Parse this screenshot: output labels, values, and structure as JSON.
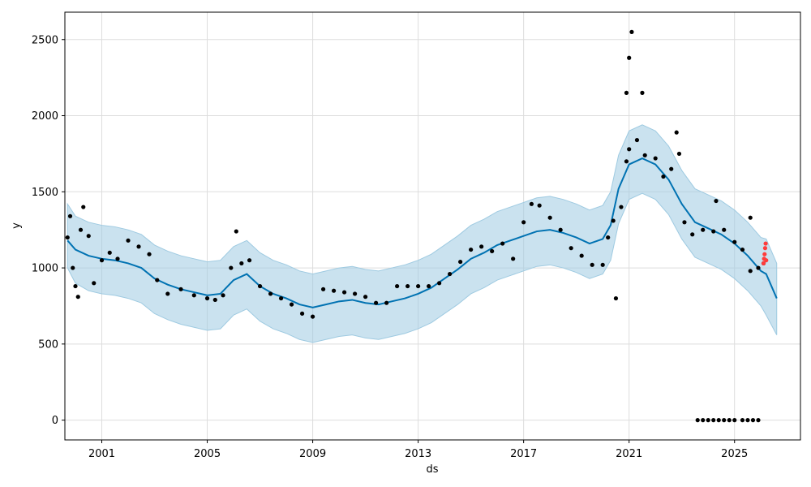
{
  "chart_data": {
    "type": "line",
    "title": "",
    "xlabel": "ds",
    "ylabel": "y",
    "xlim": [
      1999.6,
      2027.5
    ],
    "ylim": [
      -130,
      2680
    ],
    "x_ticks": [
      2001,
      2005,
      2009,
      2013,
      2017,
      2021,
      2025
    ],
    "y_ticks": [
      0,
      500,
      1000,
      1500,
      2000,
      2500
    ],
    "grid": true,
    "legend": "none",
    "colors": {
      "forecast": "#0072B2",
      "interval": "#9ecae1",
      "observed": "#000000",
      "recent": "#ff3b3b"
    },
    "series": [
      {
        "kind": "forecast",
        "x": [
          1999.7,
          2000.0,
          2000.5,
          2001.0,
          2001.5,
          2002.0,
          2002.5,
          2003.0,
          2003.5,
          2004.0,
          2004.5,
          2005.0,
          2005.5,
          2006.0,
          2006.5,
          2007.0,
          2007.5,
          2008.0,
          2008.5,
          2009.0,
          2009.5,
          2010.0,
          2010.5,
          2011.0,
          2011.5,
          2012.0,
          2012.5,
          2013.0,
          2013.5,
          2014.0,
          2014.5,
          2015.0,
          2015.5,
          2016.0,
          2016.5,
          2017.0,
          2017.5,
          2018.0,
          2018.5,
          2019.0,
          2019.5,
          2020.0,
          2020.3,
          2020.6,
          2021.0,
          2021.5,
          2022.0,
          2022.5,
          2023.0,
          2023.5,
          2024.0,
          2024.5,
          2025.0,
          2025.5,
          2026.0,
          2026.2,
          2026.6
        ],
        "yhat": [
          1180,
          1120,
          1080,
          1060,
          1050,
          1030,
          1000,
          930,
          890,
          860,
          840,
          820,
          830,
          920,
          960,
          880,
          830,
          800,
          760,
          740,
          760,
          780,
          790,
          770,
          760,
          780,
          800,
          830,
          870,
          930,
          990,
          1060,
          1100,
          1150,
          1180,
          1210,
          1240,
          1250,
          1230,
          1200,
          1160,
          1190,
          1280,
          1520,
          1680,
          1720,
          1680,
          1580,
          1420,
          1300,
          1260,
          1220,
          1160,
          1080,
          980,
          960,
          800
        ],
        "lower": [
          1000,
          900,
          850,
          830,
          820,
          800,
          770,
          700,
          660,
          630,
          610,
          590,
          600,
          690,
          730,
          650,
          600,
          570,
          530,
          510,
          530,
          550,
          560,
          540,
          530,
          550,
          570,
          600,
          640,
          700,
          760,
          830,
          870,
          920,
          950,
          980,
          1010,
          1020,
          1000,
          970,
          930,
          960,
          1050,
          1290,
          1450,
          1490,
          1450,
          1350,
          1190,
          1070,
          1030,
          990,
          930,
          850,
          750,
          690,
          560
        ],
        "upper": [
          1420,
          1340,
          1300,
          1280,
          1270,
          1250,
          1220,
          1150,
          1110,
          1080,
          1060,
          1040,
          1050,
          1140,
          1180,
          1100,
          1050,
          1020,
          980,
          960,
          980,
          1000,
          1010,
          990,
          980,
          1000,
          1020,
          1050,
          1090,
          1150,
          1210,
          1280,
          1320,
          1370,
          1400,
          1430,
          1460,
          1470,
          1450,
          1420,
          1380,
          1410,
          1500,
          1740,
          1900,
          1940,
          1900,
          1800,
          1640,
          1520,
          1480,
          1440,
          1380,
          1300,
          1200,
          1190,
          1030
        ]
      },
      {
        "kind": "observed",
        "x": [
          1999.7,
          1999.8,
          1999.9,
          2000.0,
          2000.1,
          2000.2,
          2000.3,
          2000.5,
          2000.7,
          2001.0,
          2001.3,
          2001.6,
          2002.0,
          2002.4,
          2002.8,
          2003.1,
          2003.5,
          2004.0,
          2004.5,
          2005.0,
          2005.3,
          2005.6,
          2005.9,
          2006.1,
          2006.3,
          2006.6,
          2007.0,
          2007.4,
          2007.8,
          2008.2,
          2008.6,
          2009.0,
          2009.4,
          2009.8,
          2010.2,
          2010.6,
          2011.0,
          2011.4,
          2011.8,
          2012.2,
          2012.6,
          2013.0,
          2013.4,
          2013.8,
          2014.2,
          2014.6,
          2015.0,
          2015.4,
          2015.8,
          2016.2,
          2016.6,
          2017.0,
          2017.3,
          2017.6,
          2018.0,
          2018.4,
          2018.8,
          2019.2,
          2019.6,
          2020.0,
          2020.2,
          2020.4,
          2020.5,
          2020.7,
          2020.9,
          2021.0,
          2021.3,
          2021.6,
          2022.0,
          2022.3,
          2022.6,
          2022.9,
          2023.1,
          2023.4,
          2023.8,
          2024.2,
          2024.6,
          2025.0,
          2025.3,
          2025.6,
          2025.9,
          2026.1
        ],
        "y": [
          1200,
          1340,
          1000,
          880,
          810,
          1250,
          1400,
          1210,
          900,
          1050,
          1100,
          1060,
          1180,
          1140,
          1090,
          920,
          830,
          860,
          820,
          800,
          790,
          820,
          1000,
          1240,
          1030,
          1050,
          880,
          830,
          800,
          760,
          700,
          680,
          860,
          850,
          840,
          830,
          810,
          770,
          770,
          880,
          880,
          880,
          880,
          900,
          960,
          1040,
          1120,
          1140,
          1110,
          1160,
          1060,
          1300,
          1420,
          1410,
          1330,
          1250,
          1130,
          1080,
          1020,
          1020,
          1200,
          1310,
          800,
          1400,
          1700,
          1780,
          1840,
          1740,
          1720,
          1600,
          1650,
          1750,
          1300,
          1220,
          1250,
          1240,
          1250,
          1170,
          1120,
          980,
          1000,
          1030
        ]
      },
      {
        "kind": "observed-outliers",
        "x": [
          2020.9,
          2021.0,
          2021.1,
          2021.5,
          2022.8,
          2024.3,
          2025.6
        ],
        "y": [
          2150,
          2380,
          2550,
          2150,
          1890,
          1440,
          1330
        ]
      },
      {
        "kind": "observed-zero",
        "x": [
          2023.6,
          2023.8,
          2024.0,
          2024.2,
          2024.4,
          2024.6,
          2024.8,
          2025.0,
          2025.3,
          2025.5,
          2025.7,
          2025.9
        ],
        "y": [
          0,
          0,
          0,
          0,
          0,
          0,
          0,
          0,
          0,
          0,
          0,
          0
        ]
      },
      {
        "kind": "recent",
        "x": [
          2026.1,
          2026.12,
          2026.14,
          2026.16,
          2026.18,
          2026.2
        ],
        "y": [
          1030,
          1060,
          1090,
          1130,
          1160,
          1050
        ]
      }
    ]
  }
}
